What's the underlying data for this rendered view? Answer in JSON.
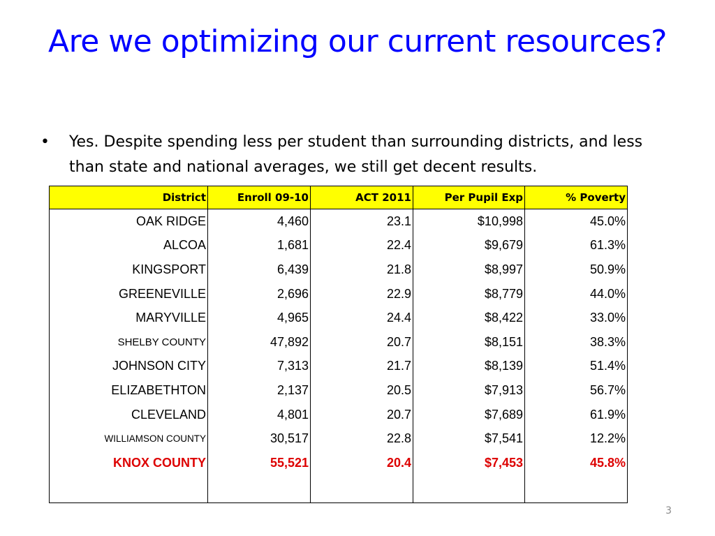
{
  "slide": {
    "title": "Are we optimizing our current resources?",
    "bullet_symbol": "•",
    "bullet": "Yes.  Despite spending less per student than surrounding districts, and less than state and national averages, we still get decent results.",
    "page_number": "3"
  },
  "table": {
    "headers": [
      "District",
      "Enroll 09-10",
      "ACT 2011",
      "Per Pupil Exp",
      "% Poverty"
    ],
    "rows": [
      [
        "OAK RIDGE",
        "4,460",
        "23.1",
        "$10,998",
        "45.0%"
      ],
      [
        "ALCOA",
        "1,681",
        "22.4",
        "$9,679",
        "61.3%"
      ],
      [
        "KINGSPORT",
        "6,439",
        "21.8",
        "$8,997",
        "50.9%"
      ],
      [
        "GREENEVILLE",
        "2,696",
        "22.9",
        "$8,779",
        "44.0%"
      ],
      [
        "MARYVILLE",
        "4,965",
        "24.4",
        "$8,422",
        "33.0%"
      ],
      [
        "SHELBY COUNTY",
        "47,892",
        "20.7",
        "$8,151",
        "38.3%"
      ],
      [
        "JOHNSON CITY",
        "7,313",
        "21.7",
        "$8,139",
        "51.4%"
      ],
      [
        "ELIZABETHTON",
        "2,137",
        "20.5",
        "$7,913",
        "56.7%"
      ],
      [
        "CLEVELAND",
        "4,801",
        "20.7",
        "$7,689",
        "61.9%"
      ],
      [
        "WILLIAMSON COUNTY",
        "30,517",
        "22.8",
        "$7,541",
        "12.2%"
      ],
      [
        "KNOX COUNTY",
        "55,521",
        "20.4",
        "$7,453",
        "45.8%"
      ]
    ],
    "highlight_row": "KNOX COUNTY",
    "header_color": "#ffff00",
    "highlight_color": "#dd0000"
  }
}
